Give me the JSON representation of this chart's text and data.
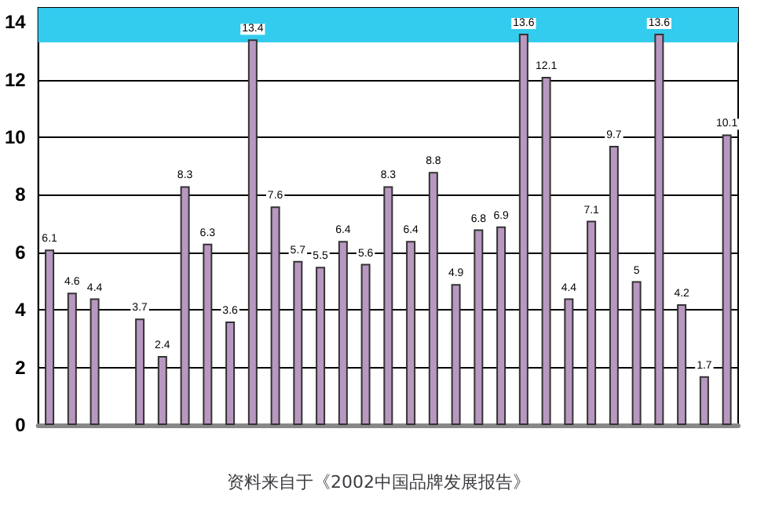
{
  "chart_data": {
    "type": "bar",
    "annotations": [
      "资料来自于《2002中国品牌发展报告》"
    ],
    "categories": [
      null,
      null,
      null,
      null,
      null,
      null,
      null,
      null,
      null,
      null,
      null,
      null,
      null,
      null,
      null,
      null,
      null,
      null,
      null,
      null,
      null,
      null,
      null,
      null,
      null,
      null,
      null,
      null,
      null,
      null,
      null
    ],
    "values": [
      6.1,
      4.6,
      4.4,
      null,
      3.7,
      2.4,
      8.3,
      6.3,
      3.6,
      13.4,
      7.6,
      5.7,
      5.5,
      6.4,
      5.6,
      8.3,
      6.4,
      8.8,
      4.9,
      6.8,
      6.9,
      13.6,
      12.1,
      4.4,
      7.1,
      9.7,
      5,
      13.6,
      4.2,
      1.7,
      10.1
    ],
    "color": "#b898c0",
    "data_labels": true,
    "ylim": [
      0,
      14.5
    ],
    "yticks": [
      0,
      2,
      4,
      6,
      8,
      10,
      12,
      14
    ],
    "grid": "y",
    "bands": [
      {
        "axis": "y",
        "from": 13.3,
        "to": 14.5,
        "color": "#33ccee"
      }
    ]
  }
}
